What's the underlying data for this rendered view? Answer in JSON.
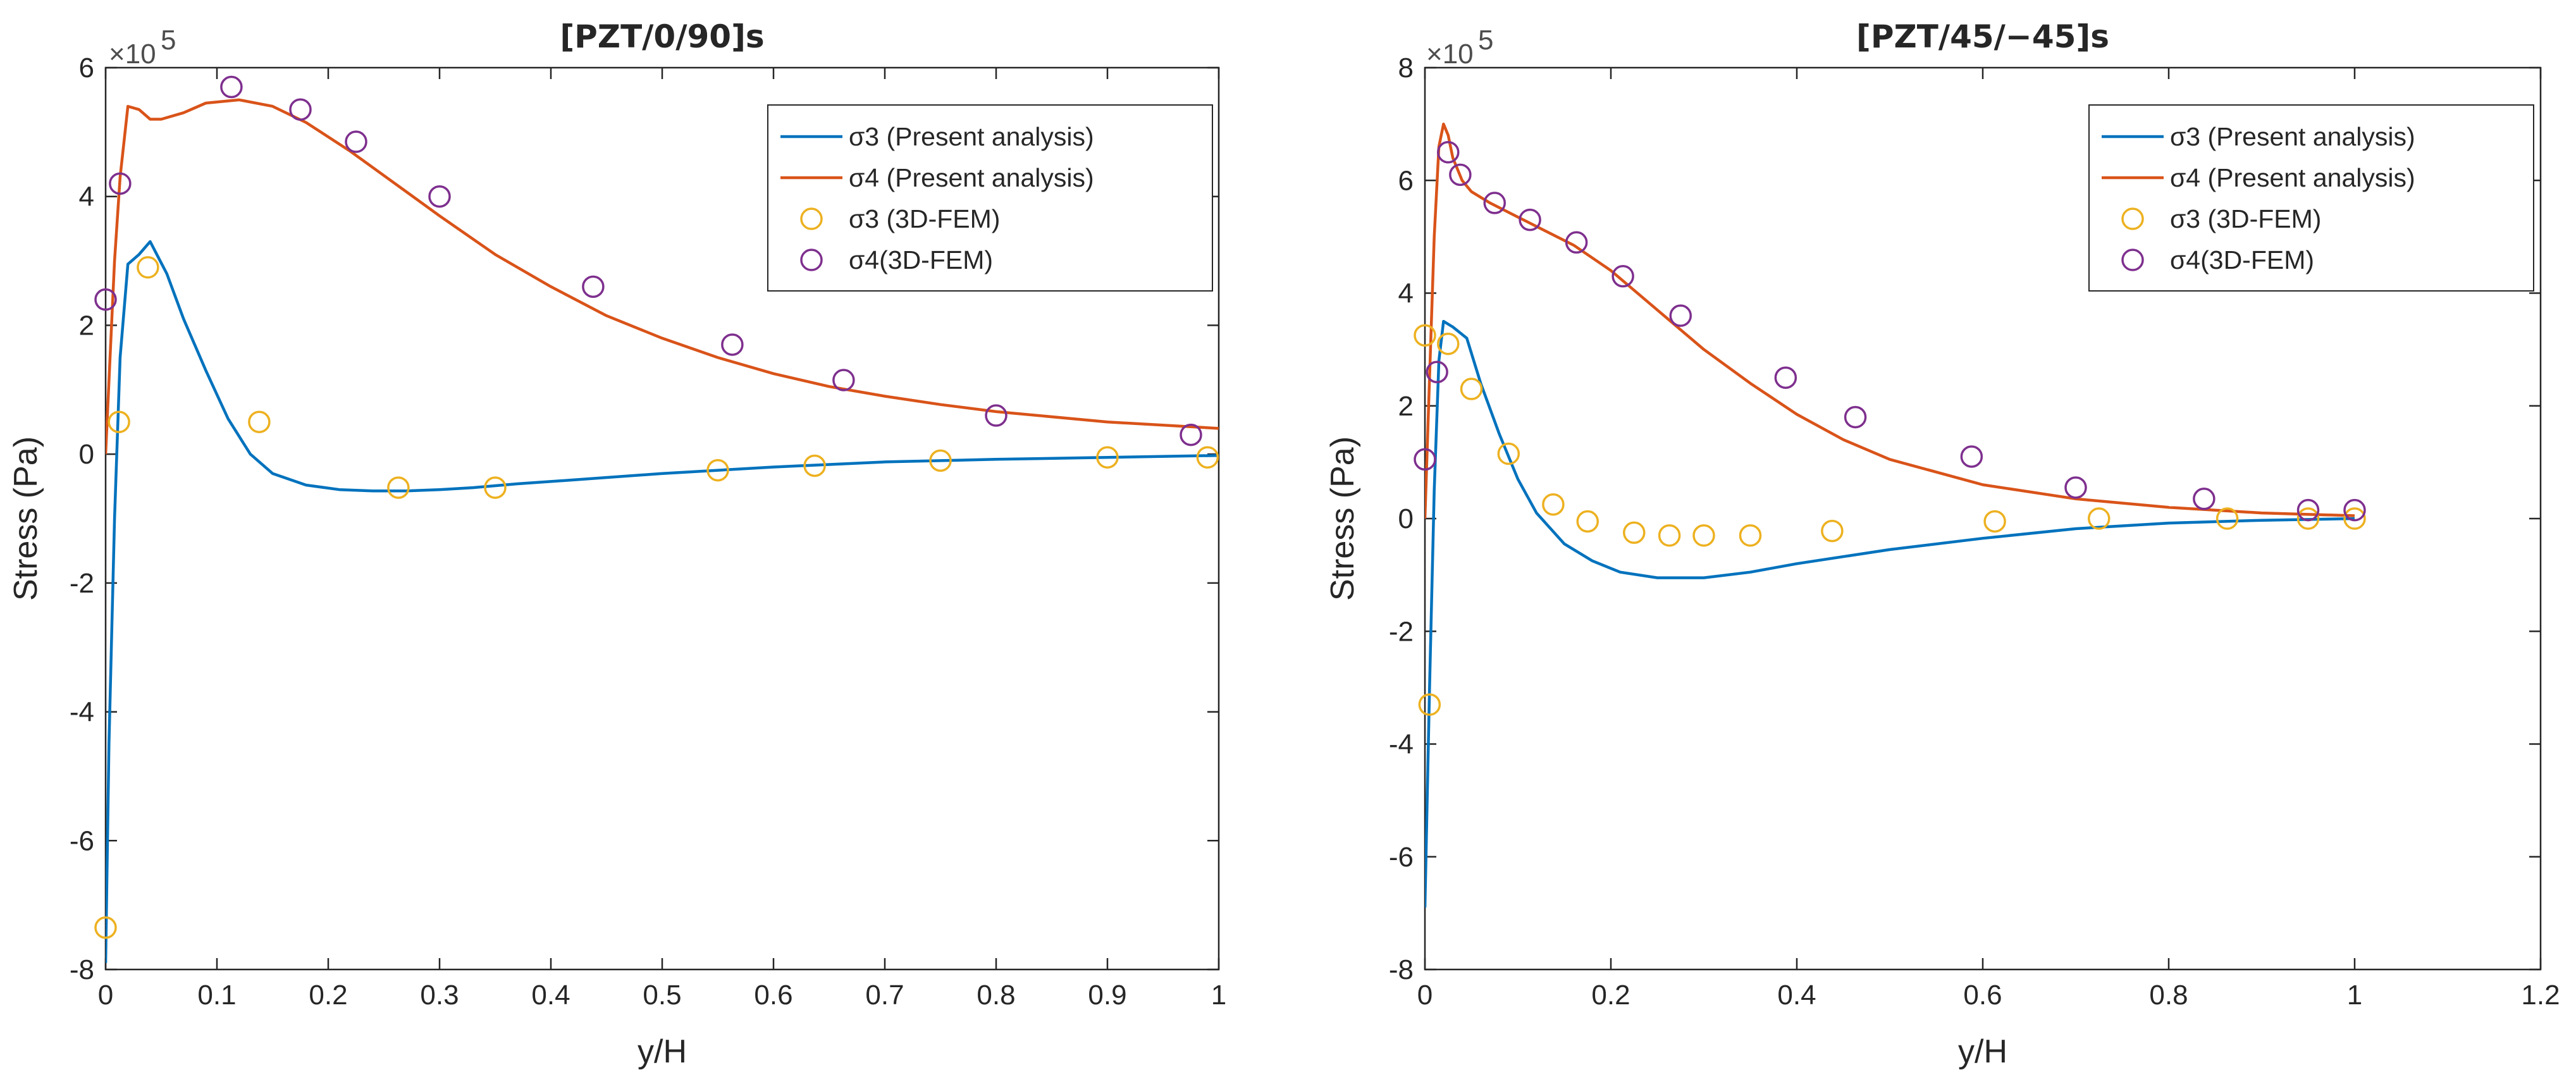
{
  "chart_data": [
    {
      "type": "line",
      "title": "[PZT/0/90]s",
      "xlabel": "y/H",
      "ylabel": "Stress (Pa)",
      "multiplier": "×10",
      "multiplier_exp": "5",
      "xlim": [
        0,
        1
      ],
      "ylim": [
        -8,
        6
      ],
      "xticks": [
        0,
        0.1,
        0.2,
        0.3,
        0.4,
        0.5,
        0.6,
        0.7,
        0.8,
        0.9,
        1
      ],
      "xtick_labels": [
        "0",
        "0.1",
        "0.2",
        "0.3",
        "0.4",
        "0.5",
        "0.6",
        "0.7",
        "0.8",
        "0.9",
        "1"
      ],
      "yticks": [
        -8,
        -6,
        -4,
        -2,
        0,
        2,
        4,
        6
      ],
      "ytick_labels": [
        "-8",
        "-6",
        "-4",
        "-2",
        "0",
        "2",
        "4",
        "6"
      ],
      "legend_position": "top-right",
      "series": [
        {
          "name": "σ3 (Present analysis)",
          "style": "line",
          "color": "#0072BD",
          "x": [
            0,
            0.003,
            0.008,
            0.013,
            0.02,
            0.03,
            0.04,
            0.055,
            0.07,
            0.09,
            0.11,
            0.13,
            0.15,
            0.18,
            0.21,
            0.24,
            0.27,
            0.3,
            0.33,
            0.37,
            0.42,
            0.5,
            0.6,
            0.7,
            0.8,
            0.9,
            1.0
          ],
          "y": [
            -7.9,
            -4.5,
            -1.0,
            1.5,
            2.95,
            3.1,
            3.3,
            2.8,
            2.1,
            1.3,
            0.55,
            0.0,
            -0.3,
            -0.48,
            -0.55,
            -0.57,
            -0.57,
            -0.55,
            -0.52,
            -0.46,
            -0.4,
            -0.3,
            -0.2,
            -0.12,
            -0.08,
            -0.05,
            -0.02
          ]
        },
        {
          "name": "σ4 (Present analysis)",
          "style": "line",
          "color": "#D95319",
          "x": [
            0,
            0.004,
            0.008,
            0.013,
            0.02,
            0.03,
            0.04,
            0.05,
            0.07,
            0.09,
            0.12,
            0.15,
            0.18,
            0.22,
            0.26,
            0.3,
            0.35,
            0.4,
            0.45,
            0.5,
            0.55,
            0.6,
            0.65,
            0.7,
            0.75,
            0.8,
            0.9,
            1.0
          ],
          "y": [
            0.0,
            1.5,
            3.0,
            4.3,
            5.4,
            5.35,
            5.2,
            5.2,
            5.3,
            5.45,
            5.5,
            5.4,
            5.15,
            4.7,
            4.2,
            3.7,
            3.1,
            2.6,
            2.15,
            1.8,
            1.5,
            1.25,
            1.05,
            0.9,
            0.77,
            0.66,
            0.5,
            0.4
          ]
        },
        {
          "name": "σ3 (3D-FEM)",
          "style": "marker",
          "color": "#EDB120",
          "x": [
            0.0,
            0.012,
            0.038,
            0.138,
            0.263,
            0.35,
            0.55,
            0.637,
            0.75,
            0.9,
            0.99
          ],
          "y": [
            -7.35,
            0.5,
            2.9,
            0.5,
            -0.52,
            -0.52,
            -0.25,
            -0.18,
            -0.1,
            -0.05,
            -0.05
          ]
        },
        {
          "name": "σ4(3D-FEM)",
          "style": "marker",
          "color": "#7E2F8E",
          "x": [
            0.0,
            0.013,
            0.113,
            0.175,
            0.225,
            0.3,
            0.438,
            0.563,
            0.663,
            0.8,
            0.975
          ],
          "y": [
            2.4,
            4.2,
            5.7,
            5.35,
            4.85,
            4.0,
            2.6,
            1.7,
            1.15,
            0.6,
            0.3
          ]
        }
      ]
    },
    {
      "type": "line",
      "title": "[PZT/45/−45]s",
      "xlabel": "y/H",
      "ylabel": "Stress (Pa)",
      "multiplier": "×10",
      "multiplier_exp": "5",
      "xlim": [
        0,
        1.2
      ],
      "ylim": [
        -8,
        8
      ],
      "xticks": [
        0,
        0.2,
        0.4,
        0.6,
        0.8,
        1,
        1.2
      ],
      "xtick_labels": [
        "0",
        "0.2",
        "0.4",
        "0.6",
        "0.8",
        "1",
        "1.2"
      ],
      "yticks": [
        -8,
        -6,
        -4,
        -2,
        0,
        2,
        4,
        6,
        8
      ],
      "ytick_labels": [
        "-8",
        "-6",
        "-4",
        "-2",
        "0",
        "2",
        "4",
        "6",
        "8"
      ],
      "legend_position": "top-right",
      "series": [
        {
          "name": "σ3 (Present analysis)",
          "style": "line",
          "color": "#0072BD",
          "x": [
            0,
            0.005,
            0.01,
            0.015,
            0.02,
            0.03,
            0.045,
            0.06,
            0.08,
            0.1,
            0.12,
            0.15,
            0.18,
            0.21,
            0.25,
            0.3,
            0.35,
            0.4,
            0.5,
            0.6,
            0.7,
            0.8,
            0.9,
            1.0
          ],
          "y": [
            -6.9,
            -3.0,
            0.5,
            2.8,
            3.5,
            3.4,
            3.2,
            2.4,
            1.5,
            0.7,
            0.1,
            -0.45,
            -0.75,
            -0.95,
            -1.05,
            -1.05,
            -0.95,
            -0.8,
            -0.55,
            -0.35,
            -0.18,
            -0.08,
            -0.03,
            0.0
          ]
        },
        {
          "name": "σ4 (Present analysis)",
          "style": "line",
          "color": "#D95319",
          "x": [
            0,
            0.005,
            0.01,
            0.015,
            0.02,
            0.025,
            0.03,
            0.04,
            0.05,
            0.07,
            0.1,
            0.13,
            0.16,
            0.2,
            0.25,
            0.3,
            0.35,
            0.4,
            0.45,
            0.5,
            0.6,
            0.7,
            0.8,
            0.9,
            1.0
          ],
          "y": [
            0.0,
            2.5,
            5.0,
            6.6,
            7.0,
            6.8,
            6.4,
            6.0,
            5.8,
            5.6,
            5.35,
            5.1,
            4.85,
            4.4,
            3.7,
            3.0,
            2.4,
            1.85,
            1.4,
            1.05,
            0.6,
            0.35,
            0.2,
            0.1,
            0.05
          ]
        },
        {
          "name": "σ3 (3D-FEM)",
          "style": "marker",
          "color": "#EDB120",
          "x": [
            0.0,
            0.005,
            0.025,
            0.05,
            0.09,
            0.138,
            0.175,
            0.225,
            0.263,
            0.3,
            0.35,
            0.438,
            0.613,
            0.725,
            0.863,
            0.95,
            1.0
          ],
          "y": [
            3.25,
            -3.3,
            3.1,
            2.3,
            1.15,
            0.25,
            -0.05,
            -0.25,
            -0.3,
            -0.3,
            -0.3,
            -0.22,
            -0.05,
            0.0,
            0.0,
            0.0,
            0.0
          ]
        },
        {
          "name": "σ4(3D-FEM)",
          "style": "marker",
          "color": "#7E2F8E",
          "x": [
            0.0,
            0.013,
            0.025,
            0.038,
            0.075,
            0.113,
            0.163,
            0.213,
            0.275,
            0.388,
            0.463,
            0.588,
            0.7,
            0.838,
            0.95,
            1.0
          ],
          "y": [
            1.05,
            2.6,
            6.5,
            6.1,
            5.6,
            5.3,
            4.9,
            4.3,
            3.6,
            2.5,
            1.8,
            1.1,
            0.55,
            0.35,
            0.15,
            0.15
          ]
        }
      ]
    }
  ]
}
